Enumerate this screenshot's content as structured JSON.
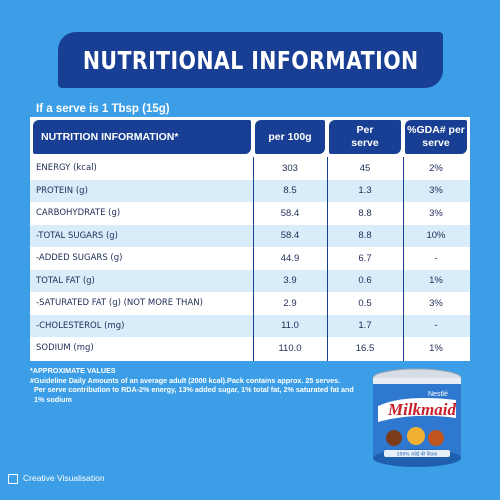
{
  "title": "NUTRITIONAL INFORMATION",
  "serve_note": "If a serve is 1 Tbsp (15g)",
  "table": {
    "headers": [
      "NUTRITION INFORMATION*",
      "per 100g",
      "Per serve",
      "%GDA# per serve"
    ],
    "rows": [
      {
        "name": "ENERGY (kcal)",
        "per100": "303",
        "serve": "45",
        "gda": "2%"
      },
      {
        "name": "PROTEIN (g)",
        "per100": "8.5",
        "serve": "1.3",
        "gda": "3%"
      },
      {
        "name": "CARBOHYDRATE (g)",
        "per100": "58.4",
        "serve": "8.8",
        "gda": "3%"
      },
      {
        "name": "-TOTAL SUGARS (g)",
        "per100": "58.4",
        "serve": "8.8",
        "gda": "10%"
      },
      {
        "name": "-ADDED SUGARS (g)",
        "per100": "44.9",
        "serve": "6.7",
        "gda": "-"
      },
      {
        "name": "TOTAL FAT (g)",
        "per100": "3.9",
        "serve": "0.6",
        "gda": "1%"
      },
      {
        "name": "-SATURATED FAT (g) (NOT MORE THAN)",
        "per100": "2.9",
        "serve": "0.5",
        "gda": "3%"
      },
      {
        "name": "-CHOLESTEROL (mg)",
        "per100": "11.0",
        "serve": "1.7",
        "gda": "-"
      },
      {
        "name": "SODIUM (mg)",
        "per100": "110.0",
        "serve": "16.5",
        "gda": "1%"
      }
    ]
  },
  "footnotes": [
    "*APPROXIMATE VALUES",
    "#Guideline Daily Amounts of an average adult (2000 kcal).Pack contains approx. 25 serves.",
    "Per serve contribution to RDA-2% energy, 13% added sugar, 1% total fat, 2% saturated fat and 1% sodium"
  ],
  "product": {
    "brand": "Nestlé",
    "name": "Milkmaid",
    "tagline": "100% रसोई की मिठास"
  },
  "visualisation_note": "Creative Visualisation",
  "colors": {
    "background": "#3b9ee6",
    "navy": "#183f93",
    "row_alt": "#d9ecfa",
    "can_red": "#c8202b"
  }
}
